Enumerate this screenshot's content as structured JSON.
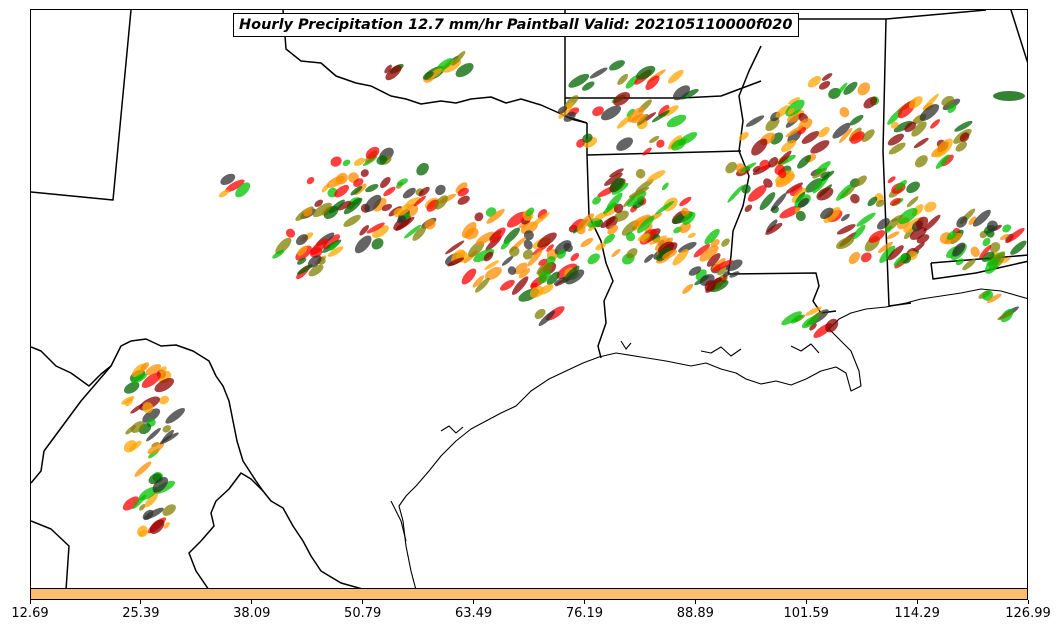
{
  "title": "Hourly Precipitation 12.7 mm/hr Paintball Valid: 202105110000f020",
  "colorbar": {
    "color": "#fdbf6f",
    "ticks": [
      "12.69",
      "25.39",
      "38.09",
      "50.79",
      "63.49",
      "76.19",
      "88.89",
      "101.59",
      "114.29",
      "126.99"
    ]
  },
  "paintball_colors": [
    "#ff0000",
    "#ff8c00",
    "#00c000",
    "#006400",
    "#8b0000",
    "#808000",
    "#303030",
    "#ffa500"
  ],
  "map_colors": {
    "boundaries": "#000000",
    "background": "#ffffff"
  }
}
